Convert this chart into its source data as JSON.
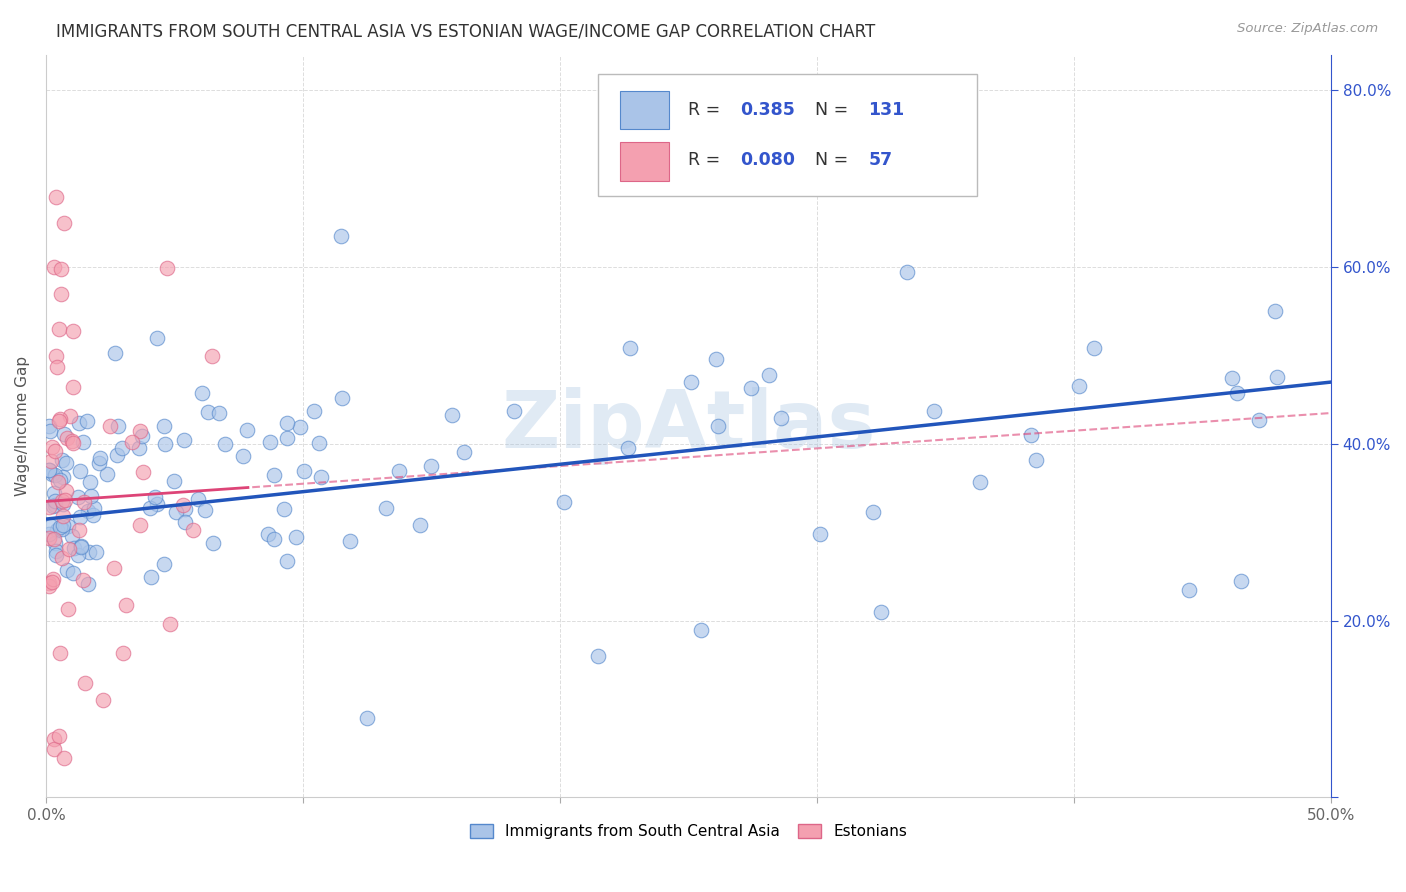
{
  "title": "IMMIGRANTS FROM SOUTH CENTRAL ASIA VS ESTONIAN WAGE/INCOME GAP CORRELATION CHART",
  "source": "Source: ZipAtlas.com",
  "ylabel": "Wage/Income Gap",
  "xlim": [
    0.0,
    0.5
  ],
  "ylim": [
    0.0,
    0.84
  ],
  "xticks": [
    0.0,
    0.1,
    0.2,
    0.3,
    0.4,
    0.5
  ],
  "yticks": [
    0.0,
    0.2,
    0.4,
    0.6,
    0.8
  ],
  "xticklabels": [
    "0.0%",
    "",
    "",
    "",
    "",
    "50.0%"
  ],
  "yticklabels_right": [
    "",
    "20.0%",
    "40.0%",
    "60.0%",
    "80.0%"
  ],
  "blue_R": 0.385,
  "blue_N": 131,
  "pink_R": 0.08,
  "pink_N": 57,
  "blue_color": "#aac4e8",
  "pink_color": "#f4a0b0",
  "blue_edge_color": "#5588cc",
  "pink_edge_color": "#dd6688",
  "blue_line_color": "#2255bb",
  "pink_line_color": "#dd4477",
  "watermark": "ZipAtlas",
  "legend_text_color": "#3355cc",
  "legend_R_color": "#333333",
  "background_color": "#ffffff",
  "grid_color": "#dddddd",
  "spine_color": "#cccccc",
  "title_color": "#333333",
  "source_color": "#999999",
  "ylabel_color": "#555555"
}
